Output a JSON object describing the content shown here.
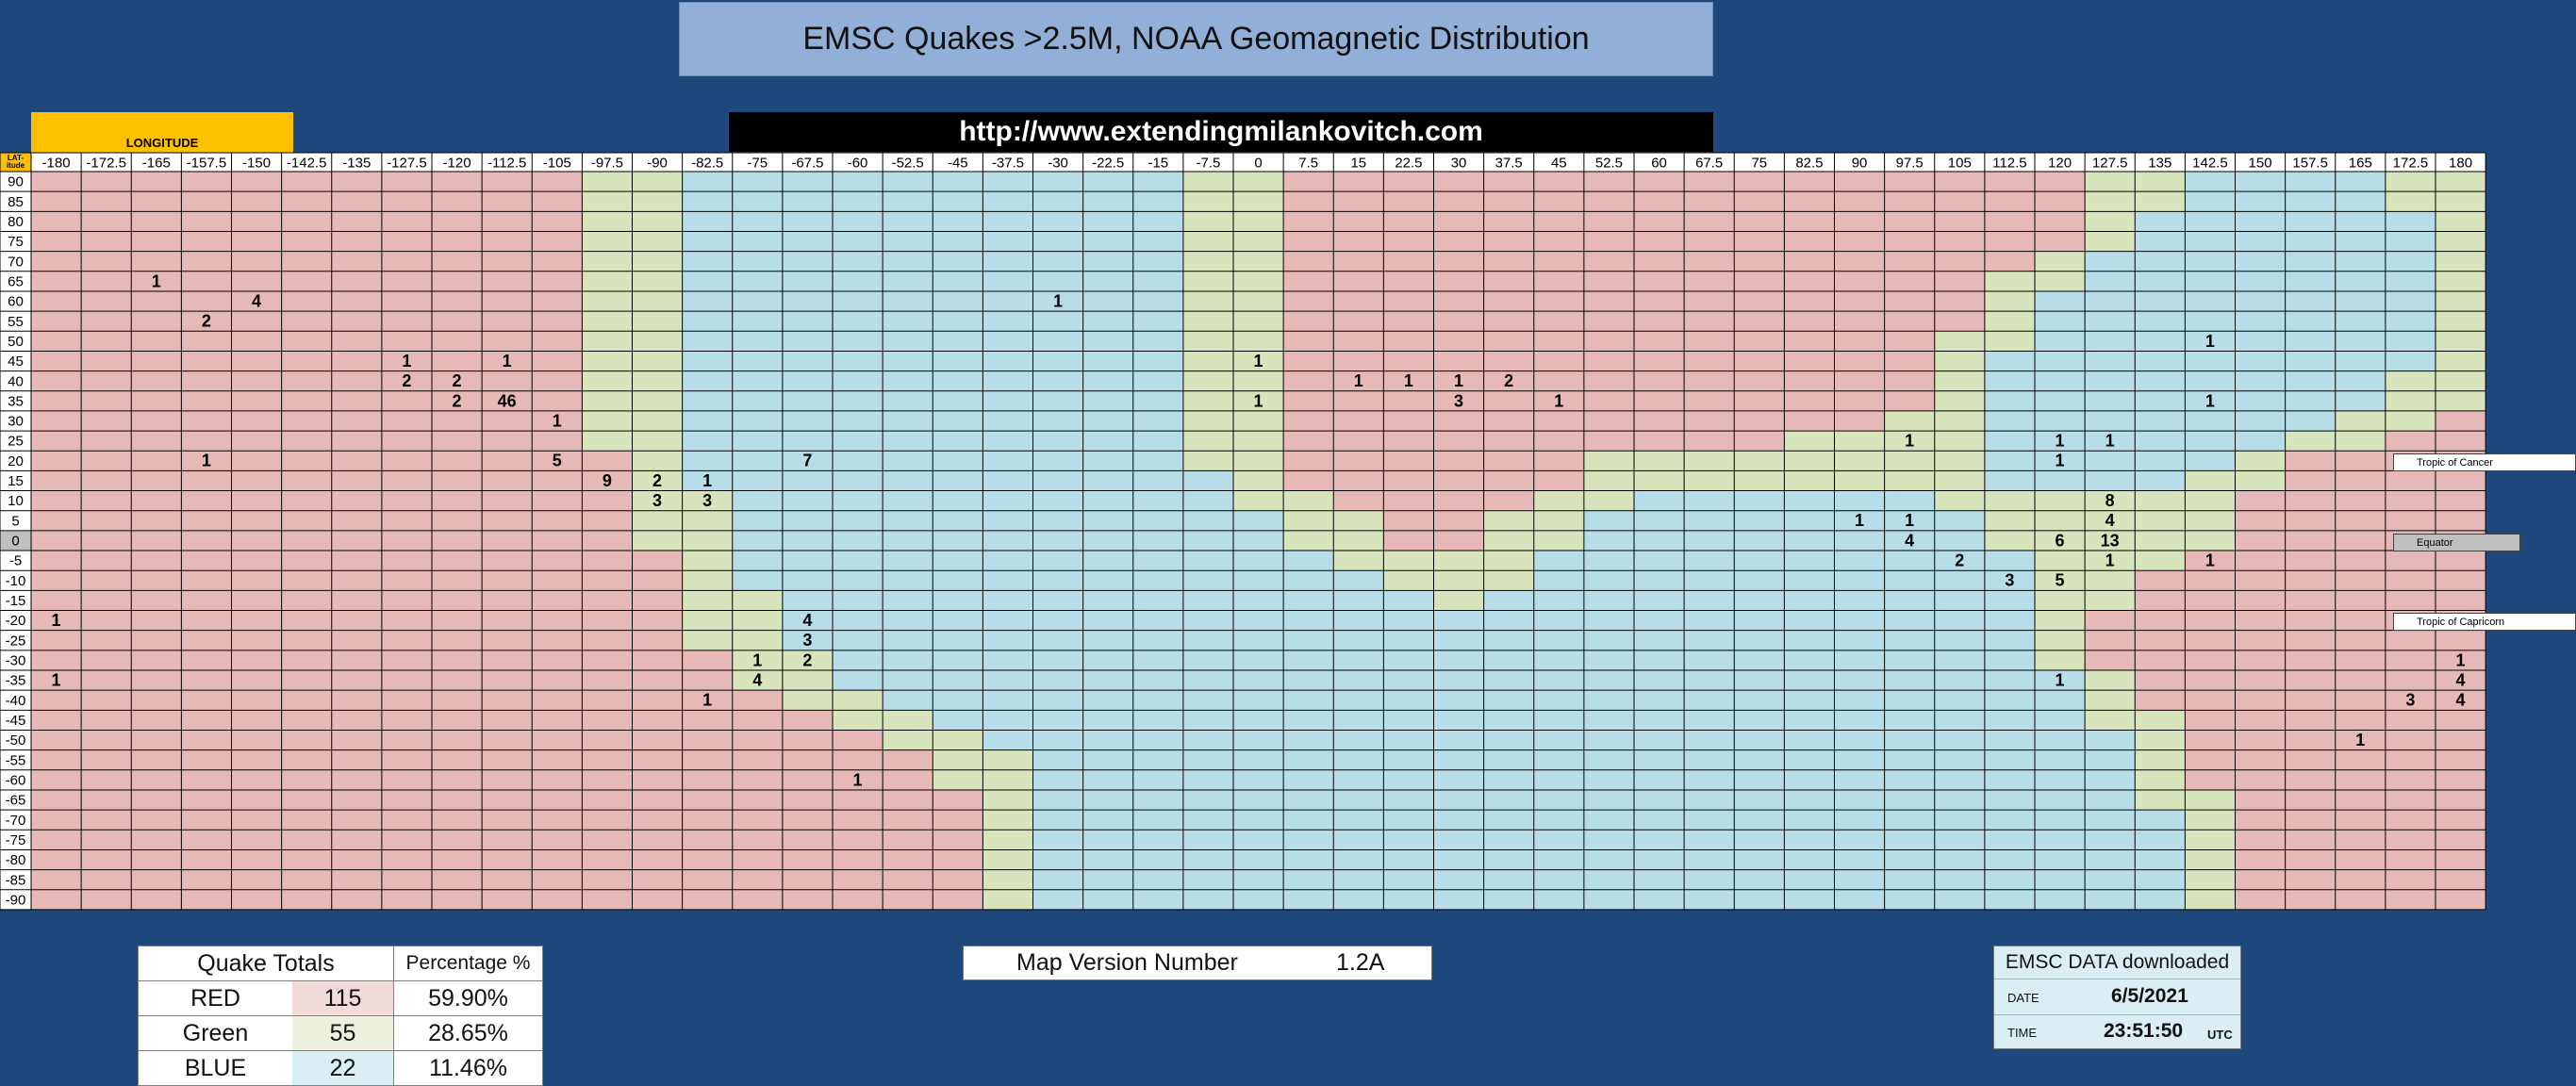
{
  "title": "EMSC Quakes >2.5M, NOAA Geomagnetic Distribution",
  "url": "http://www.extendingmilankovitch.com",
  "longitude_label": "LONGITUDE",
  "latitude_label": "LAT-itude",
  "colors": {
    "red": "#e6b8b7",
    "green": "#d8e4bc",
    "blue": "#b7dee8",
    "background": "#1e477b",
    "gridline": "#000000"
  },
  "chart_data": {
    "type": "heatmap",
    "title": "EMSC Quakes >2.5M, NOAA Geomagnetic Distribution",
    "xlabel": "LONGITUDE",
    "ylabel": "LAT-itude",
    "x": [
      "-180",
      "-172.5",
      "-165",
      "-157.5",
      "-150",
      "-142.5",
      "-135",
      "-127.5",
      "-120",
      "-112.5",
      "-105",
      "-97.5",
      "-90",
      "-82.5",
      "-75",
      "-67.5",
      "-60",
      "-52.5",
      "-45",
      "-37.5",
      "-30",
      "-22.5",
      "-15",
      "-7.5",
      "0",
      "7.5",
      "15",
      "22.5",
      "30",
      "37.5",
      "45",
      "52.5",
      "60",
      "67.5",
      "75",
      "82.5",
      "90",
      "97.5",
      "105",
      "112.5",
      "120",
      "127.5",
      "135",
      "142.5",
      "150",
      "157.5",
      "165",
      "172.5",
      "180"
    ],
    "y": [
      "90",
      "85",
      "80",
      "75",
      "70",
      "65",
      "60",
      "55",
      "50",
      "45",
      "40",
      "35",
      "30",
      "25",
      "20",
      "15",
      "10",
      "5",
      "0",
      "-5",
      "-10",
      "-15",
      "-20",
      "-25",
      "-30",
      "-35",
      "-40",
      "-45",
      "-50",
      "-55",
      "-60",
      "-65",
      "-70",
      "-75",
      "-80",
      "-85",
      "-90"
    ],
    "legend": {
      "R": "RED",
      "G": "Green",
      "B": "BLUE"
    },
    "zones": [
      "RRRRRRRRRRRGGBBBBBBBBBBGGRRRRRRRRRRRRRRRRGGBBBBGG",
      "RRRRRRRRRRRGGBBBBBBBBBBGGRRRRRRRRRRRRRRRRGGBBBBGG",
      "RRRRRRRRRRRGGBBBBBBBBBBGGRRRRRRRRRRRRRRRRGBBBBBBG",
      "RRRRRRRRRRRGGBBBBBBBBBBGGRRRRRRRRRRRRRRRRGBBBBBBG",
      "RRRRRRRRRRRGGBBBBBBBBBBGGRRRRRRRRRRRRRRRGBBBBBBBG",
      "RRRRRRRRRRRGGBBBBBBBBBBGGRRRRRRRRRRRRRRGGBBBBBBBG",
      "RRRRRRRRRRRGGBBBBBBBBBBGGRRRRRRRRRRRRRRGBBBBBBBBG",
      "RRRRRRRRRRRGGBBBBBBBBBBGGRRRRRRRRRRRRRRGBBBBBBBBG",
      "RRRRRRRRRRRGGBBBBBBBBBBGGRRRRRRRRRRRRRGGBBBBBBBBG",
      "RRRRRRRRRRRGGBBBBBBBBBBGGRRRRRRRRRRRRRGBBBBBBBBBG",
      "RRRRRRRRRRRGGBBBBBBBBBBGGRRRRRRRRRRRRRGBBBBBBBBGG",
      "RRRRRRRRRRRGGBBBBBBBBBBGGRRRRRRRRRRRRRGBBBBBBBBGG",
      "RRRRRRRRRRRGGBBBBBBBBBBGGRRRRRRRRRRRRGGBBBBBBBGGR",
      "RRRRRRRRRRRGGBBBBBBBBBBGGRRRRRRRRRRGGGGBBBBBBGGRR",
      "RRRRRRRRRRRRGBBBBBBBBBBGGRRRRRRGGGGGGGGBBBBBGRRRR",
      "RRRRRRRRRRRRGBBBBBBBBBBBGRRRRRRGGGGGGGGBBBBGGRRRR",
      "RRRRRRRRRRRRGGBBBBBBBBBBGGRRRRGGBBBBBBGGGGGGRRRRR",
      "RRRRRRRRRRRRGGBBBBBBBBBBBGGRRGGBBBBBBBBGGGGGRRRRR",
      "RRRRRRRRRRRRGGBBBBBBBBBBBGGRRGGBBBBBBBBGGGGGRRRRR",
      "RRRRRRRRRRRRRGBBBBBBBBBBBBGGGGBBBBBBBBBBGGGRRRRRR",
      "RRRRRRRRRRRRRGBBBBBBBBBBBBBGGGBBBBBBBBBBGGRRRRRRR",
      "RRRRRRRRRRRRRGGBBBBBBBBBBBBBGBBBBBBBBBBBGGRRRRRRR",
      "RRRRRRRRRRRRRGGBBBBBBBBBBBBBBBBBBBBBBBBBGRRRRRRRR",
      "RRRRRRRRRRRRRGGBBBBBBBBBBBBBBBBBBBBBBBBBGRRRRRRRR",
      "RRRRRRRRRRRRRRGGBBBBBBBBBBBBBBBBBBBBBBBBGRRRRRRRR",
      "RRRRRRRRRRRRRRGGBBBBBBBBBBBBBBBBBBBBBBBBBGRRRRRRR",
      "RRRRRRRRRRRRRRRGGBBBBBBBBBBBBBBBBBBBBBBBBGRRRRRRR",
      "RRRRRRRRRRRRRRRRGGBBBBBBBBBBBBBBBBBBBBBBBGGRRRRRR",
      "RRRRRRRRRRRRRRRRRGGBBBBBBBBBBBBBBBBBBBBBBBGRRRRRR",
      "RRRRRRRRRRRRRRRRRRGGBBBBBBBBBBBBBBBBBBBBBBGRRRRRR",
      "RRRRRRRRRRRRRRRRRRGGBBBBBBBBBBBBBBBBBBBBBBGRRRRRR",
      "RRRRRRRRRRRRRRRRRRRGBBBBBBBBBBBBBBBBBBBBBBGGRRRRR",
      "RRRRRRRRRRRRRRRRRRRGBBBBBBBBBBBBBBBBBBBBBBBGRRRRR",
      "RRRRRRRRRRRRRRRRRRRGBBBBBBBBBBBBBBBBBBBBBBBGRRRRR",
      "RRRRRRRRRRRRRRRRRRRGBBBBBBBBBBBBBBBBBBBBBBBGRRRRR",
      "RRRRRRRRRRRRRRRRRRRGBBBBBBBBBBBBBBBBBBBBBBBGRRRRR",
      "RRRRRRRRRRRRRRRRRRRGBBBBBBBBBBBBBBBBBBBBBBBGRRRRR"
    ],
    "counts": [
      {
        "lat": "65",
        "lon": "-165",
        "v": 1
      },
      {
        "lat": "60",
        "lon": "-150",
        "v": 4
      },
      {
        "lat": "60",
        "lon": "-30",
        "v": 1
      },
      {
        "lat": "55",
        "lon": "-157.5",
        "v": 2
      },
      {
        "lat": "50",
        "lon": "142.5",
        "v": 1
      },
      {
        "lat": "45",
        "lon": "-127.5",
        "v": 1
      },
      {
        "lat": "45",
        "lon": "-112.5",
        "v": 1
      },
      {
        "lat": "45",
        "lon": "0",
        "v": 1
      },
      {
        "lat": "40",
        "lon": "-127.5",
        "v": 2
      },
      {
        "lat": "40",
        "lon": "-120",
        "v": 2
      },
      {
        "lat": "40",
        "lon": "15",
        "v": 1
      },
      {
        "lat": "40",
        "lon": "22.5",
        "v": 1
      },
      {
        "lat": "40",
        "lon": "30",
        "v": 1
      },
      {
        "lat": "40",
        "lon": "37.5",
        "v": 2
      },
      {
        "lat": "35",
        "lon": "-120",
        "v": 2
      },
      {
        "lat": "35",
        "lon": "-112.5",
        "v": 46
      },
      {
        "lat": "35",
        "lon": "0",
        "v": 1
      },
      {
        "lat": "35",
        "lon": "30",
        "v": 3
      },
      {
        "lat": "35",
        "lon": "45",
        "v": 1
      },
      {
        "lat": "35",
        "lon": "142.5",
        "v": 1
      },
      {
        "lat": "30",
        "lon": "-105",
        "v": 1
      },
      {
        "lat": "25",
        "lon": "97.5",
        "v": 1
      },
      {
        "lat": "25",
        "lon": "120",
        "v": 1
      },
      {
        "lat": "25",
        "lon": "127.5",
        "v": 1
      },
      {
        "lat": "20",
        "lon": "-157.5",
        "v": 1
      },
      {
        "lat": "20",
        "lon": "-105",
        "v": 5
      },
      {
        "lat": "20",
        "lon": "-67.5",
        "v": 7
      },
      {
        "lat": "20",
        "lon": "120",
        "v": 1
      },
      {
        "lat": "15",
        "lon": "-97.5",
        "v": 9
      },
      {
        "lat": "15",
        "lon": "-90",
        "v": 2
      },
      {
        "lat": "15",
        "lon": "-82.5",
        "v": 1
      },
      {
        "lat": "10",
        "lon": "-90",
        "v": 3
      },
      {
        "lat": "10",
        "lon": "-82.5",
        "v": 3
      },
      {
        "lat": "10",
        "lon": "127.5",
        "v": 8
      },
      {
        "lat": "5",
        "lon": "90",
        "v": 1
      },
      {
        "lat": "5",
        "lon": "97.5",
        "v": 1
      },
      {
        "lat": "5",
        "lon": "127.5",
        "v": 4
      },
      {
        "lat": "0",
        "lon": "97.5",
        "v": 4
      },
      {
        "lat": "0",
        "lon": "120",
        "v": 6
      },
      {
        "lat": "0",
        "lon": "127.5",
        "v": 13
      },
      {
        "lat": "-5",
        "lon": "105",
        "v": 2
      },
      {
        "lat": "-5",
        "lon": "127.5",
        "v": 1
      },
      {
        "lat": "-5",
        "lon": "142.5",
        "v": 1
      },
      {
        "lat": "-10",
        "lon": "112.5",
        "v": 3
      },
      {
        "lat": "-10",
        "lon": "120",
        "v": 5
      },
      {
        "lat": "-20",
        "lon": "-180",
        "v": 1
      },
      {
        "lat": "-20",
        "lon": "-67.5",
        "v": 4
      },
      {
        "lat": "-25",
        "lon": "-67.5",
        "v": 3
      },
      {
        "lat": "-30",
        "lon": "-75",
        "v": 1
      },
      {
        "lat": "-30",
        "lon": "-67.5",
        "v": 2
      },
      {
        "lat": "-30",
        "lon": "180",
        "v": 1
      },
      {
        "lat": "-35",
        "lon": "-180",
        "v": 1
      },
      {
        "lat": "-35",
        "lon": "-75",
        "v": 4
      },
      {
        "lat": "-35",
        "lon": "120",
        "v": 1
      },
      {
        "lat": "-35",
        "lon": "180",
        "v": 4
      },
      {
        "lat": "-40",
        "lon": "-82.5",
        "v": 1
      },
      {
        "lat": "-40",
        "lon": "172.5",
        "v": 3
      },
      {
        "lat": "-40",
        "lon": "180",
        "v": 4
      },
      {
        "lat": "-50",
        "lon": "165",
        "v": 1
      },
      {
        "lat": "-60",
        "lon": "-60",
        "v": 1
      }
    ]
  },
  "side_labels": {
    "tropic_cancer": "Tropic of Cancer",
    "equator": "Equator",
    "tropic_capricorn": "Tropic of Capricorn"
  },
  "totals": {
    "header_label": "Quake Totals",
    "header_pct": "Percentage %",
    "rows": [
      {
        "label": "RED",
        "count": "115",
        "pct": "59.90%"
      },
      {
        "label": "Green",
        "count": "55",
        "pct": "28.65%"
      },
      {
        "label": "BLUE",
        "count": "22",
        "pct": "11.46%"
      }
    ]
  },
  "map_version": {
    "label": "Map Version Number",
    "value": "1.2A"
  },
  "emsc": {
    "header": "EMSC DATA downloaded",
    "date_label": "DATE",
    "date_value": "6/5/2021",
    "time_label": "TIME",
    "time_value": "23:51:50",
    "time_unit": "UTC"
  }
}
